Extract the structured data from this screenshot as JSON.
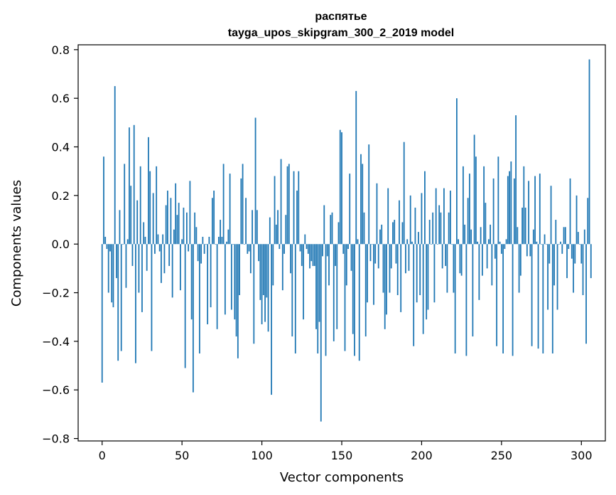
{
  "chart_data": {
    "type": "bar",
    "title": "распятье",
    "subtitle": "tayga_upos_skipgram_300_2_2019 model",
    "xlabel": "Vector components",
    "ylabel": "Components values",
    "xlim": [
      -15,
      315
    ],
    "ylim": [
      -0.81,
      0.82
    ],
    "xticks": [
      0,
      50,
      100,
      150,
      200,
      250,
      300
    ],
    "yticks": [
      -0.8,
      -0.6,
      -0.4,
      -0.2,
      0.0,
      0.2,
      0.4,
      0.6,
      0.8
    ],
    "grid": false,
    "bar_color": "#1f77b4",
    "values": [
      -0.57,
      0.36,
      0.03,
      -0.02,
      -0.2,
      -0.03,
      -0.24,
      -0.26,
      0.65,
      -0.14,
      -0.48,
      0.14,
      -0.44,
      0.0,
      0.33,
      -0.18,
      0.02,
      0.48,
      0.24,
      -0.09,
      0.49,
      -0.49,
      0.18,
      -0.2,
      0.32,
      -0.28,
      0.09,
      0.03,
      -0.11,
      0.44,
      0.3,
      -0.44,
      0.21,
      -0.04,
      0.32,
      0.04,
      -0.03,
      -0.16,
      0.04,
      -0.12,
      0.16,
      0.22,
      -0.09,
      0.19,
      -0.22,
      0.06,
      0.25,
      0.12,
      0.17,
      -0.19,
      0.02,
      0.15,
      -0.51,
      0.13,
      -0.03,
      0.26,
      -0.31,
      -0.61,
      0.13,
      0.07,
      -0.07,
      -0.45,
      -0.08,
      0.03,
      -0.04,
      0.0,
      -0.33,
      0.03,
      -0.26,
      0.19,
      0.22,
      0.0,
      -0.35,
      0.03,
      0.1,
      0.03,
      0.33,
      -0.29,
      0.01,
      0.06,
      0.29,
      -0.27,
      0.0,
      -0.31,
      -0.38,
      -0.47,
      -0.21,
      0.27,
      0.33,
      0.0,
      0.19,
      -0.04,
      -0.03,
      -0.12,
      0.14,
      -0.41,
      0.52,
      0.14,
      -0.07,
      -0.23,
      -0.33,
      -0.21,
      -0.32,
      -0.22,
      -0.36,
      0.11,
      -0.62,
      -0.17,
      0.28,
      0.08,
      0.14,
      -0.02,
      0.35,
      -0.19,
      -0.04,
      0.12,
      0.32,
      0.33,
      -0.12,
      -0.38,
      0.3,
      -0.45,
      0.22,
      0.3,
      -0.03,
      -0.09,
      -0.31,
      0.04,
      -0.02,
      -0.04,
      -0.1,
      -0.07,
      -0.09,
      -0.09,
      -0.35,
      -0.45,
      -0.32,
      -0.73,
      -0.05,
      0.16,
      -0.46,
      -0.05,
      -0.17,
      0.12,
      0.13,
      -0.4,
      -0.09,
      -0.35,
      0.09,
      0.47,
      0.46,
      -0.04,
      -0.44,
      -0.17,
      -0.02,
      0.29,
      -0.11,
      -0.37,
      -0.46,
      0.63,
      0.02,
      -0.48,
      0.37,
      0.33,
      0.13,
      -0.38,
      -0.24,
      0.41,
      -0.07,
      0.0,
      -0.25,
      -0.08,
      0.25,
      -0.1,
      0.06,
      0.08,
      -0.2,
      -0.35,
      -0.29,
      0.23,
      -0.2,
      -0.1,
      0.09,
      0.1,
      -0.08,
      -0.21,
      0.18,
      -0.28,
      0.09,
      0.42,
      -0.12,
      0.02,
      -0.11,
      0.2,
      0.01,
      -0.42,
      0.15,
      -0.24,
      0.05,
      -0.21,
      0.21,
      -0.37,
      0.3,
      -0.31,
      -0.27,
      0.1,
      0.0,
      0.13,
      -0.24,
      0.23,
      0.0,
      0.16,
      0.13,
      -0.1,
      0.23,
      -0.09,
      -0.2,
      0.13,
      0.22,
      0.0,
      -0.2,
      -0.45,
      0.6,
      0.02,
      -0.12,
      -0.13,
      0.32,
      0.08,
      -0.46,
      0.19,
      0.29,
      0.06,
      -0.38,
      0.45,
      0.36,
      0.01,
      -0.23,
      0.07,
      -0.13,
      0.32,
      0.17,
      -0.1,
      0.02,
      0.08,
      -0.17,
      0.27,
      -0.06,
      -0.42,
      0.36,
      0.01,
      -0.04,
      -0.45,
      -0.02,
      0.02,
      0.28,
      0.3,
      0.34,
      -0.46,
      0.27,
      0.53,
      0.07,
      -0.2,
      -0.13,
      0.15,
      0.32,
      0.15,
      -0.05,
      0.26,
      -0.05,
      -0.42,
      0.06,
      0.28,
      0.01,
      -0.43,
      0.29,
      0.0,
      -0.45,
      0.04,
      0.0,
      -0.27,
      -0.08,
      0.24,
      -0.45,
      -0.17,
      0.1,
      -0.27,
      0.0,
      0.01,
      -0.04,
      0.07,
      0.07,
      -0.14,
      -0.02,
      0.27,
      -0.06,
      -0.2,
      -0.08,
      0.2,
      0.05,
      0.0,
      -0.08,
      -0.21,
      0.06,
      -0.41,
      0.19,
      0.76,
      -0.14
    ]
  }
}
